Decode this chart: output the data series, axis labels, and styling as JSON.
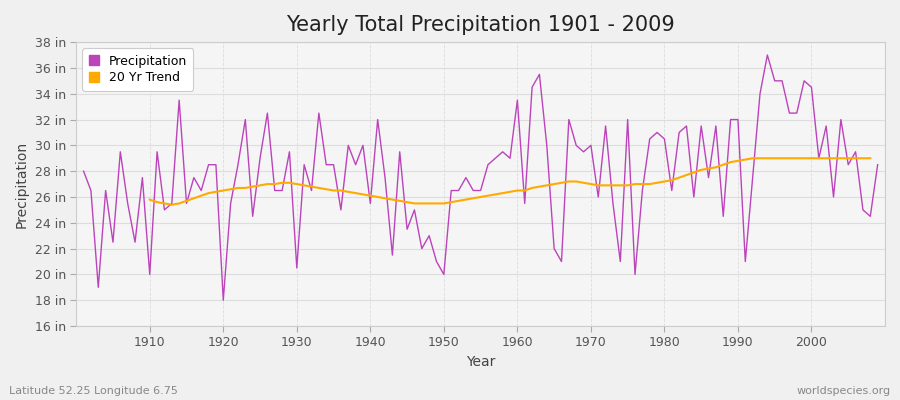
{
  "title": "Yearly Total Precipitation 1901 - 2009",
  "xlabel": "Year",
  "ylabel": "Precipitation",
  "fig_bg_color": "#f0f0f0",
  "plot_bg_color": "#f5f5f5",
  "grid_color": "#dddddd",
  "precip_color": "#bb44bb",
  "trend_color": "#ffaa00",
  "years": [
    1901,
    1902,
    1903,
    1904,
    1905,
    1906,
    1907,
    1908,
    1909,
    1910,
    1911,
    1912,
    1913,
    1914,
    1915,
    1916,
    1917,
    1918,
    1919,
    1920,
    1921,
    1922,
    1923,
    1924,
    1925,
    1926,
    1927,
    1928,
    1929,
    1930,
    1931,
    1932,
    1933,
    1934,
    1935,
    1936,
    1937,
    1938,
    1939,
    1940,
    1941,
    1942,
    1943,
    1944,
    1945,
    1946,
    1947,
    1948,
    1949,
    1950,
    1951,
    1952,
    1953,
    1954,
    1955,
    1956,
    1957,
    1958,
    1959,
    1960,
    1961,
    1962,
    1963,
    1964,
    1965,
    1966,
    1967,
    1968,
    1969,
    1970,
    1971,
    1972,
    1973,
    1974,
    1975,
    1976,
    1977,
    1978,
    1979,
    1980,
    1981,
    1982,
    1983,
    1984,
    1985,
    1986,
    1987,
    1988,
    1989,
    1990,
    1991,
    1992,
    1993,
    1994,
    1995,
    1996,
    1997,
    1998,
    1999,
    2000,
    2001,
    2002,
    2003,
    2004,
    2005,
    2006,
    2007,
    2008,
    2009
  ],
  "precip": [
    28.0,
    26.5,
    19.0,
    26.5,
    22.5,
    29.5,
    25.5,
    22.5,
    27.5,
    20.0,
    29.5,
    25.0,
    25.5,
    33.5,
    25.5,
    27.5,
    26.5,
    28.5,
    28.5,
    18.0,
    25.5,
    28.5,
    32.0,
    24.5,
    29.0,
    32.5,
    26.5,
    26.5,
    29.5,
    20.5,
    28.5,
    26.5,
    32.5,
    28.5,
    28.5,
    25.0,
    30.0,
    28.5,
    30.0,
    25.5,
    32.0,
    27.5,
    21.5,
    29.5,
    23.5,
    25.0,
    22.0,
    23.0,
    21.0,
    20.0,
    26.5,
    26.5,
    27.5,
    26.5,
    26.5,
    28.5,
    29.0,
    29.5,
    29.0,
    33.5,
    25.5,
    34.5,
    35.5,
    30.0,
    22.0,
    21.0,
    32.0,
    30.0,
    29.5,
    30.0,
    26.0,
    31.5,
    25.5,
    21.0,
    32.0,
    20.0,
    26.5,
    30.5,
    31.0,
    30.5,
    26.5,
    31.0,
    31.5,
    26.0,
    31.5,
    27.5,
    31.5,
    24.5,
    32.0,
    32.0,
    21.0,
    27.5,
    34.0,
    37.0,
    35.0,
    35.0,
    32.5,
    32.5,
    35.0,
    34.5,
    29.0,
    31.5,
    26.0,
    32.0,
    28.5,
    29.5,
    25.0,
    24.5,
    28.5
  ],
  "trend": [
    null,
    null,
    null,
    null,
    null,
    null,
    null,
    null,
    null,
    25.8,
    25.6,
    25.5,
    25.4,
    25.5,
    25.7,
    25.9,
    26.1,
    26.3,
    26.4,
    26.5,
    26.6,
    26.7,
    26.7,
    26.8,
    26.9,
    27.0,
    27.0,
    27.1,
    27.1,
    27.0,
    26.9,
    26.8,
    26.7,
    26.6,
    26.5,
    26.5,
    26.4,
    26.3,
    26.2,
    26.1,
    26.0,
    25.9,
    25.8,
    25.7,
    25.6,
    25.5,
    25.5,
    25.5,
    25.5,
    25.5,
    25.6,
    25.7,
    25.8,
    25.9,
    26.0,
    26.1,
    26.2,
    26.3,
    26.4,
    26.5,
    26.5,
    26.7,
    26.8,
    26.9,
    27.0,
    27.1,
    27.2,
    27.2,
    27.1,
    27.0,
    26.9,
    26.9,
    26.9,
    26.9,
    26.9,
    27.0,
    27.0,
    27.0,
    27.1,
    27.2,
    27.3,
    27.5,
    27.7,
    27.9,
    28.1,
    28.2,
    28.3,
    28.5,
    28.7,
    28.8,
    28.9,
    29.0,
    29.0,
    29.0,
    29.0,
    29.0,
    29.0,
    29.0,
    29.0,
    29.0,
    29.0,
    29.0,
    29.0,
    29.0,
    29.0,
    29.0,
    29.0,
    29.0
  ],
  "ylim": [
    16,
    38
  ],
  "yticks": [
    16,
    18,
    20,
    22,
    24,
    26,
    28,
    30,
    32,
    34,
    36,
    38
  ],
  "ytick_labels": [
    "16 in",
    "18 in",
    "20 in",
    "22 in",
    "24 in",
    "26 in",
    "28 in",
    "30 in",
    "32 in",
    "34 in",
    "36 in",
    "38 in"
  ],
  "xticks": [
    1910,
    1920,
    1930,
    1940,
    1950,
    1960,
    1970,
    1980,
    1990,
    2000
  ],
  "legend_labels": [
    "Precipitation",
    "20 Yr Trend"
  ],
  "footer_left": "Latitude 52.25 Longitude 6.75",
  "footer_right": "worldspecies.org",
  "title_fontsize": 15,
  "axis_fontsize": 10,
  "tick_fontsize": 9,
  "footer_fontsize": 8
}
